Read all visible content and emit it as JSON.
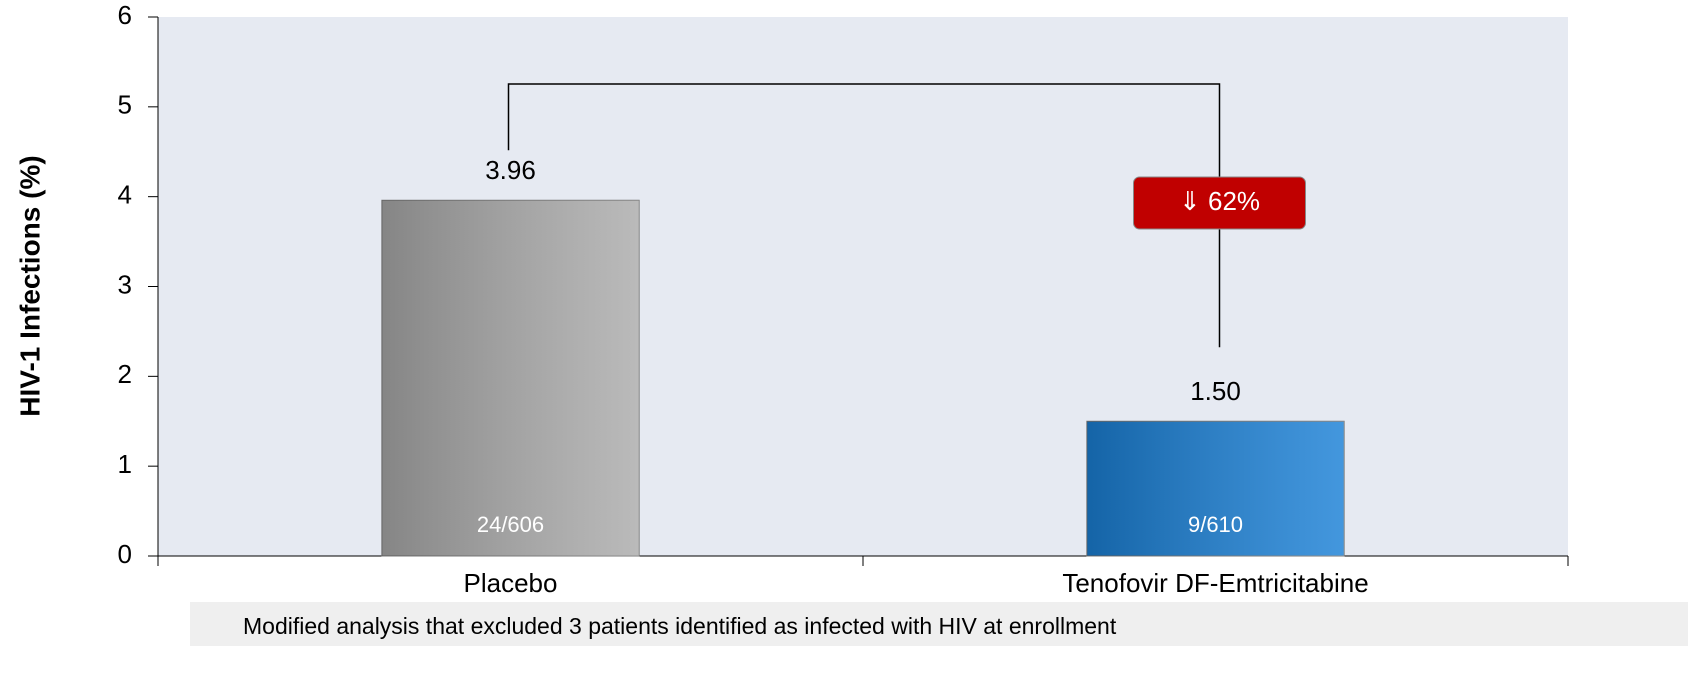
{
  "chart_data": {
    "type": "bar",
    "y_label": "HIV-1 Infections (%)",
    "categories": [
      "Placebo",
      "Tenofovir DF-Emtricitabine"
    ],
    "values": [
      3.96,
      1.5
    ],
    "value_labels": [
      "3.96",
      "1.50"
    ],
    "bar_labels": [
      "24/606",
      "9/610"
    ],
    "colors": [
      "#ababab",
      "#1a80d6"
    ],
    "ylim": [
      0,
      6
    ],
    "yticks": [
      0,
      1,
      2,
      3,
      4,
      5,
      6
    ],
    "annotation": "⇓ 62%",
    "note": "Modified analysis that excluded 3 patients identified as infected with HIV at enrollment"
  }
}
